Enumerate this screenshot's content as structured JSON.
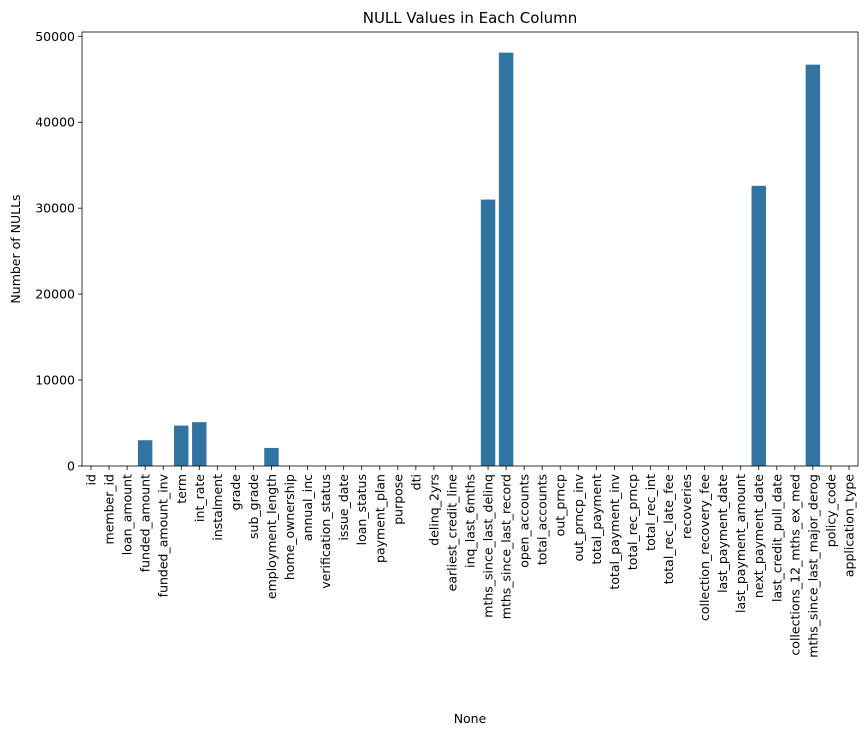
{
  "chart_data": {
    "type": "bar",
    "title": "NULL Values in Each Column",
    "xlabel": "None",
    "ylabel": "Number of NULLs",
    "ylim": [
      0,
      50500
    ],
    "yticks": [
      0,
      10000,
      20000,
      30000,
      40000,
      50000
    ],
    "grid": false,
    "bar_color": "#3274a1",
    "categories": [
      "id",
      "member_id",
      "loan_amount",
      "funded_amount",
      "funded_amount_inv",
      "term",
      "int_rate",
      "instalment",
      "grade",
      "sub_grade",
      "employment_length",
      "home_ownership",
      "annual_inc",
      "verification_status",
      "issue_date",
      "loan_status",
      "payment_plan",
      "purpose",
      "dti",
      "delinq_2yrs",
      "earliest_credit_line",
      "inq_last_6mths",
      "mths_since_last_delinq",
      "mths_since_last_record",
      "open_accounts",
      "total_accounts",
      "out_prncp",
      "out_prncp_inv",
      "total_payment",
      "total_payment_inv",
      "total_rec_prncp",
      "total_rec_int",
      "total_rec_late_fee",
      "recoveries",
      "collection_recovery_fee",
      "last_payment_date",
      "last_payment_amount",
      "next_payment_date",
      "last_credit_pull_date",
      "collections_12_mths_ex_med",
      "mths_since_last_major_derog",
      "policy_code",
      "application_type"
    ],
    "values": [
      0,
      0,
      0,
      3000,
      0,
      4700,
      5100,
      0,
      0,
      0,
      2100,
      0,
      0,
      0,
      0,
      0,
      0,
      0,
      0,
      0,
      0,
      0,
      31000,
      48100,
      0,
      0,
      0,
      0,
      0,
      0,
      0,
      0,
      0,
      0,
      0,
      0,
      0,
      32600,
      0,
      0,
      46700,
      0,
      0
    ]
  }
}
